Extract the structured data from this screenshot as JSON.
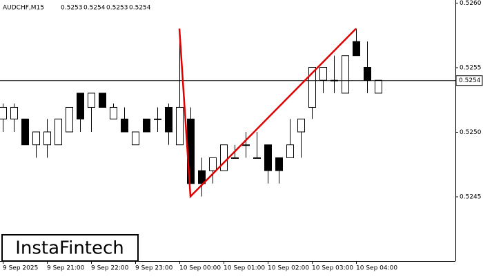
{
  "chart_data": {
    "type": "candlestick",
    "symbol": "AUDCHF,M15",
    "ohlc": [
      0.5253,
      0.5254,
      0.5253,
      0.5254
    ],
    "watermark": "InstaFintech",
    "categories": [
      "9 Sep 2025",
      null,
      null,
      null,
      "9 Sep 21:00",
      null,
      null,
      null,
      "9 Sep 22:00",
      null,
      null,
      null,
      "9 Sep 23:00",
      null,
      null,
      null,
      "10 Sep 00:00",
      null,
      null,
      null,
      "10 Sep 01:00",
      null,
      null,
      null,
      "10 Sep 02:00",
      null,
      null,
      null,
      "10 Sep 03:00",
      null,
      null,
      null,
      "10 Sep 04:00",
      null,
      null
    ],
    "open": [
      0.5251,
      0.5251,
      0.5251,
      0.5249,
      0.5249,
      0.5249,
      0.525,
      0.5253,
      0.52519,
      0.5253,
      0.5251,
      0.5251,
      0.5249,
      0.5251,
      0.5251,
      0.52519,
      0.5249,
      0.5251,
      0.5247,
      0.5247,
      0.5247,
      0.5248,
      0.5249,
      0.5248,
      0.5249,
      0.5248,
      0.5248,
      0.525,
      0.52519,
      0.5254,
      0.5254,
      0.5253,
      0.5257,
      0.5255,
      0.5253
    ],
    "high": [
      0.52522,
      0.52522,
      0.5251,
      0.525,
      0.5251,
      0.5251,
      0.52519,
      0.5253,
      0.5253,
      0.5253,
      0.52522,
      0.52519,
      0.525,
      0.5251,
      0.52519,
      0.52522,
      0.52573,
      0.52519,
      0.5248,
      0.5248,
      0.5249,
      0.5249,
      0.525,
      0.525,
      0.5249,
      0.5248,
      0.5251,
      0.5251,
      0.5255,
      0.5255,
      0.52559,
      0.52559,
      0.5258,
      0.5257,
      0.5254
    ],
    "low": [
      0.525,
      0.525,
      0.5249,
      0.5248,
      0.5248,
      0.5249,
      0.525,
      0.525,
      0.525,
      0.52519,
      0.5251,
      0.525,
      0.5249,
      0.525,
      0.525,
      0.5249,
      0.5249,
      0.5246,
      0.5245,
      0.5246,
      0.5247,
      0.5248,
      0.5248,
      0.5248,
      0.5246,
      0.5246,
      0.5248,
      0.5248,
      0.5251,
      0.5253,
      0.5253,
      0.5253,
      0.52559,
      0.5253,
      0.5253
    ],
    "close": [
      0.52519,
      0.52519,
      0.5249,
      0.525,
      0.525,
      0.5251,
      0.52519,
      0.5251,
      0.5253,
      0.52519,
      0.52519,
      0.525,
      0.525,
      0.525,
      0.5251,
      0.525,
      0.52519,
      0.5246,
      0.5246,
      0.5248,
      0.5249,
      0.5248,
      0.5249,
      0.5248,
      0.5247,
      0.5247,
      0.5249,
      0.5251,
      0.5255,
      0.5255,
      0.5254,
      0.52559,
      0.52559,
      0.5254,
      0.5254
    ],
    "pattern": {
      "color": "#e00000",
      "x": [
        16,
        17,
        32
      ],
      "values": [
        0.5258,
        0.5245,
        0.5258
      ]
    },
    "current_price": 0.5254,
    "ylim": [
      0.524,
      0.526
    ],
    "yticks": [
      0.5245,
      {
        "value": 0.525,
        "label": "0.5250"
      },
      0.5255,
      {
        "value": 0.526,
        "label": "0.5260"
      }
    ]
  }
}
